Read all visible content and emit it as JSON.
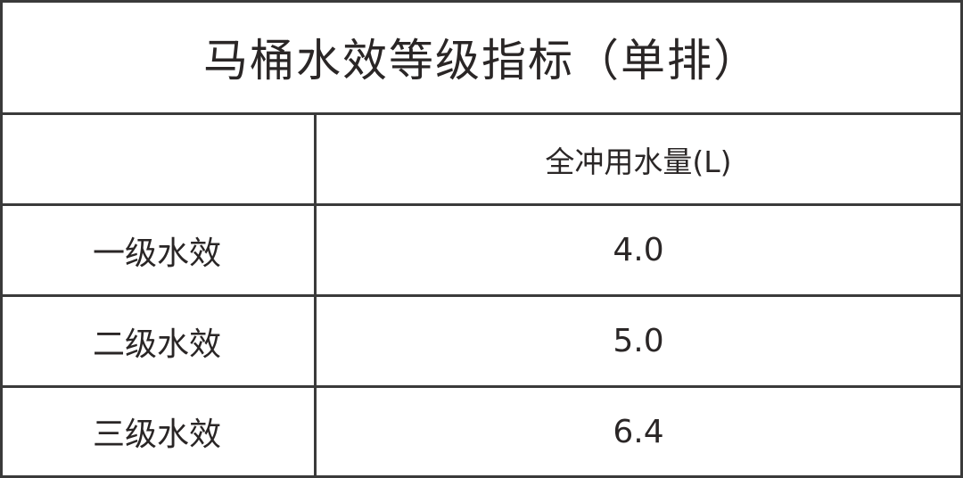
{
  "table": {
    "title": "马桶水效等级指标（单排）",
    "header": [
      "",
      "全冲用水量(L)"
    ],
    "rows": [
      {
        "grade": "一级水效",
        "value": "4.0"
      },
      {
        "grade": "二级水效",
        "value": "5.0"
      },
      {
        "grade": "三级水效",
        "value": "6.4"
      }
    ],
    "border_color": "#3a3a3a",
    "text_color": "#2a2626"
  }
}
